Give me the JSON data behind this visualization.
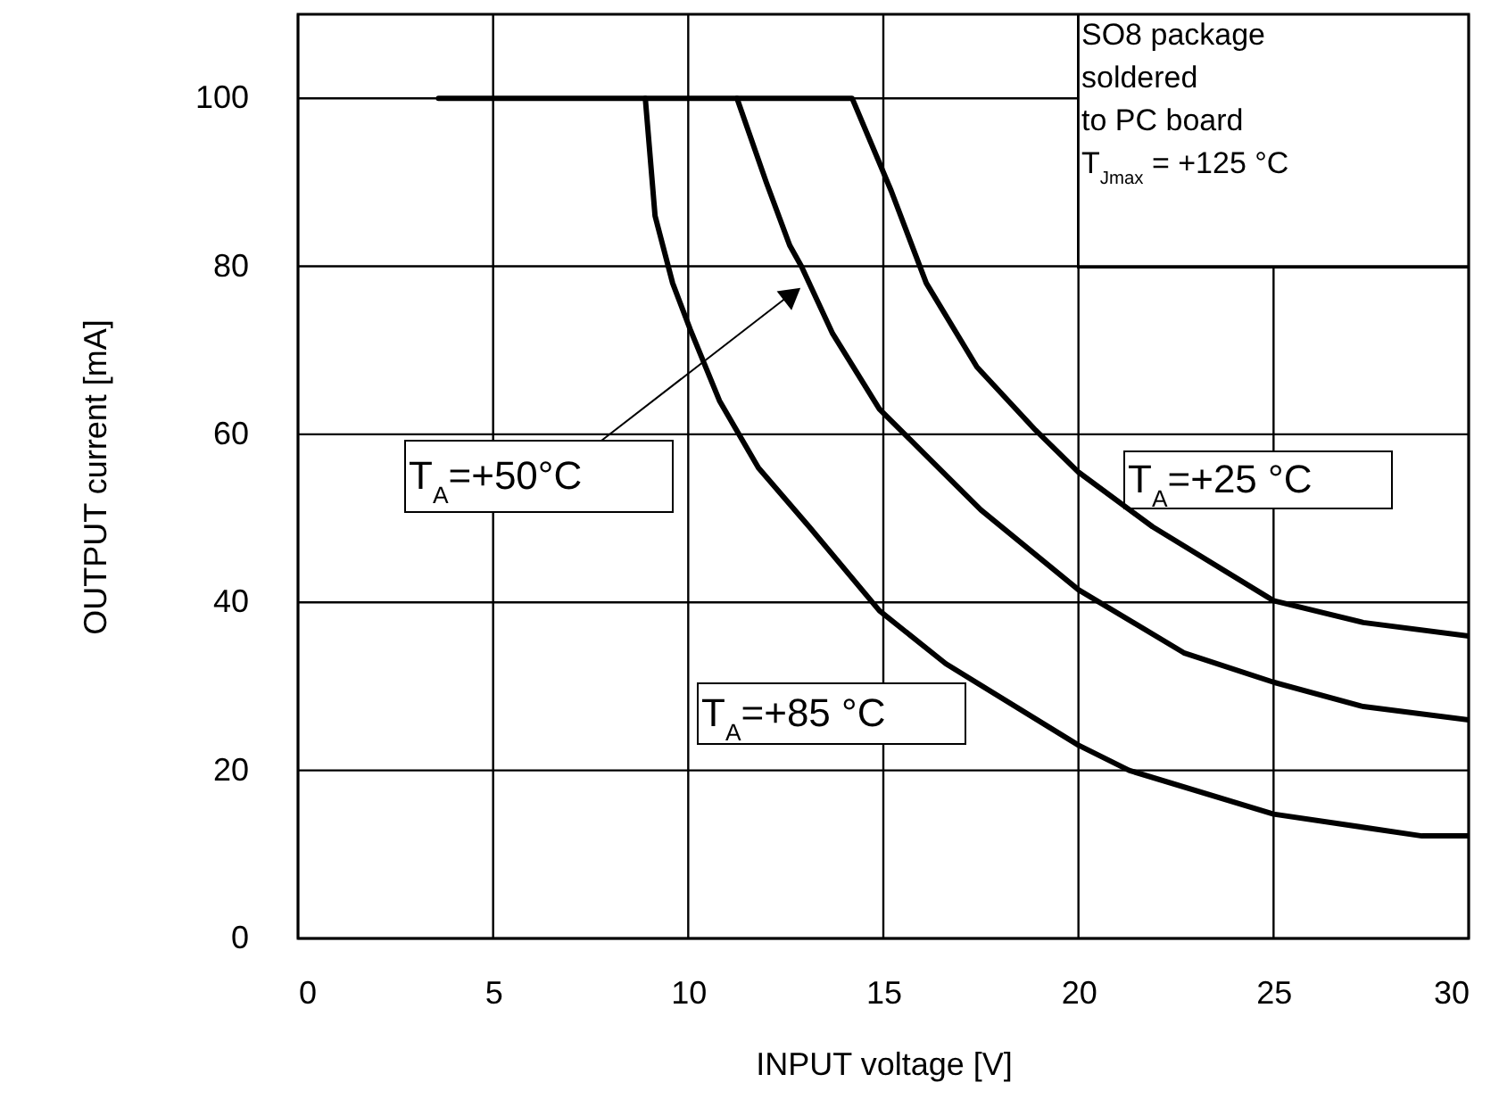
{
  "chart_data": {
    "type": "line",
    "xlabel": "INPUT voltage [V]",
    "ylabel": "OUTPUT current [mA]",
    "xlim": [
      0,
      30
    ],
    "xticks": [
      0,
      5,
      10,
      15,
      20,
      25,
      30
    ],
    "ylim": [
      0,
      110
    ],
    "yticks": [
      0,
      20,
      40,
      60,
      80,
      100
    ],
    "grid": true,
    "series": [
      {
        "name": "T$_{A}$=+25 °C",
        "color": "#000000",
        "x": [
          11.25,
          14.2,
          15.2,
          16.1,
          17.4,
          18.9,
          20,
          21.9,
          25,
          27.3,
          30
        ],
        "values": [
          100,
          100,
          89,
          78,
          68,
          60.5,
          55.5,
          49,
          40.2,
          37.6,
          36
        ]
      },
      {
        "name": "T$_{A}$=+50°C",
        "color": "#000000",
        "x": [
          8.9,
          11.25,
          12,
          12.6,
          12.9,
          13.7,
          14.9,
          17.5,
          20,
          22.7,
          25,
          27.3,
          30
        ],
        "values": [
          100,
          100,
          90,
          82.5,
          80,
          72,
          63,
          51,
          41.5,
          34,
          30.5,
          27.6,
          26
        ]
      },
      {
        "name": "T$_{A}$=+85 °C",
        "color": "#000000",
        "x": [
          3.6,
          8.9,
          9.15,
          9.6,
          10.05,
          10.8,
          11.8,
          13.1,
          14.9,
          16.6,
          20,
          21.3,
          25,
          28.8,
          30
        ],
        "values": [
          100,
          100,
          86,
          78,
          72.5,
          64,
          56,
          49,
          39,
          32.7,
          23,
          20,
          14.8,
          12.2,
          12.2
        ]
      }
    ],
    "annotations": [
      "SO8 package\nsoldered\n to PC board\nT$_{Jmax}$ = +125 °C"
    ]
  }
}
